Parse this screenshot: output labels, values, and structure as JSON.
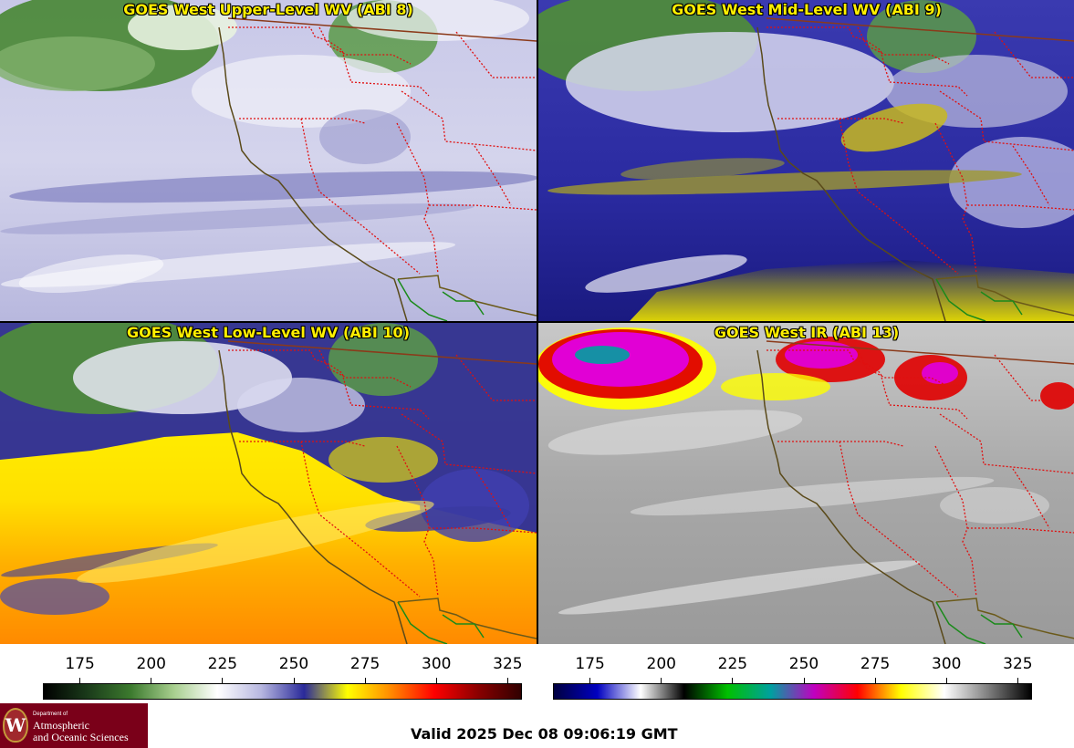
{
  "panels": [
    {
      "title": "GOES West Upper-Level WV (ABI 8)",
      "scheme": "upper"
    },
    {
      "title": "GOES West Mid-Level WV (ABI 9)",
      "scheme": "mid"
    },
    {
      "title": "GOES West Low-Level WV (ABI 10)",
      "scheme": "low"
    },
    {
      "title": "GOES West IR (ABI 13)",
      "scheme": "ir"
    }
  ],
  "colorbars": [
    {
      "name": "water-vapor-scale",
      "ticks": [
        "175",
        "200",
        "225",
        "250",
        "275",
        "300",
        "325"
      ],
      "tick_values": [
        175,
        200,
        225,
        250,
        275,
        300,
        325
      ],
      "range": [
        162,
        330
      ],
      "stops": [
        "#000000",
        "#1a3a1a",
        "#3c7a2e",
        "#a8cf8f",
        "#ffffff",
        "#b8b8e0",
        "#2a2a9a",
        "#ffff00",
        "#ff8a00",
        "#ff0000",
        "#8b0000",
        "#300000"
      ]
    },
    {
      "name": "ir-scale",
      "ticks": [
        "175",
        "200",
        "225",
        "250",
        "275",
        "300",
        "325"
      ],
      "tick_values": [
        175,
        200,
        225,
        250,
        275,
        300,
        325
      ],
      "range": [
        162,
        330
      ],
      "stops": [
        "#000040",
        "#0000c0",
        "#ffffff",
        "#000000",
        "#00c000",
        "#00a0a0",
        "#c000c0",
        "#ff0000",
        "#ffff00",
        "#ffffff",
        "#808080",
        "#000000"
      ]
    }
  ],
  "footer": {
    "valid": "Valid 2025 Dec 08 09:06:19 GMT",
    "logo_line1": "Department of",
    "logo_line2": "Atmospheric",
    "logo_line3": "and Oceanic Sciences",
    "logo_letter": "W"
  }
}
